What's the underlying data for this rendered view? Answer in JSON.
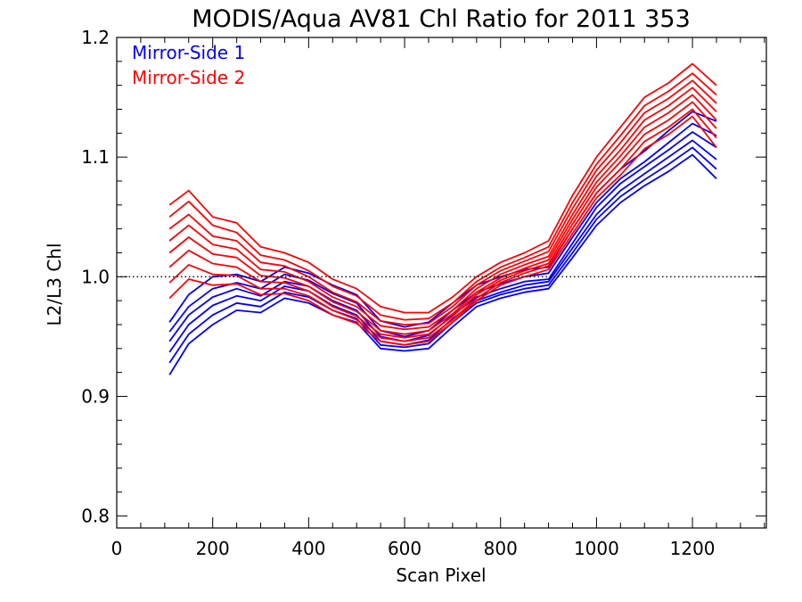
{
  "chart_data": {
    "type": "line",
    "title": "MODIS/Aqua AV81 Chl Ratio for 2011 353",
    "xlabel": "Scan Pixel",
    "ylabel": "L2/L3 Chl",
    "xlim": [
      0,
      1354
    ],
    "ylim": [
      0.79,
      1.2
    ],
    "xticks": [
      0,
      200,
      400,
      600,
      800,
      1000,
      1200
    ],
    "yticks": [
      0.8,
      0.9,
      1.0,
      1.1,
      1.2
    ],
    "xtick_labels": [
      "0",
      "200",
      "400",
      "600",
      "800",
      "1000",
      "1200"
    ],
    "ytick_labels": [
      "0.8",
      "0.9",
      "1.0",
      "1.1",
      "1.2"
    ],
    "reference_line": {
      "y": 1.0,
      "style": "dotted"
    },
    "legend_position": "top-left",
    "x": [
      110,
      150,
      200,
      250,
      300,
      350,
      400,
      450,
      500,
      550,
      600,
      650,
      700,
      750,
      800,
      850,
      900,
      950,
      1000,
      1050,
      1100,
      1150,
      1200,
      1250
    ],
    "series": [
      {
        "name": "Mirror-Side 1",
        "color": "#0000ff",
        "values": [
          0.962,
          0.985,
          1.0,
          1.002,
          0.996,
          1.008,
          1.003,
          0.993,
          0.985,
          0.963,
          0.958,
          0.962,
          0.978,
          0.993,
          1.0,
          1.006,
          1.008,
          1.04,
          1.07,
          1.09,
          1.105,
          1.122,
          1.138,
          1.13
        ]
      },
      {
        "name": "",
        "color": "#0000ff",
        "values": [
          0.954,
          0.975,
          0.99,
          0.995,
          0.99,
          1.002,
          0.997,
          0.986,
          0.978,
          0.955,
          0.95,
          0.955,
          0.972,
          0.987,
          0.994,
          1.0,
          1.003,
          1.033,
          1.062,
          1.082,
          1.096,
          1.112,
          1.128,
          1.118
        ]
      },
      {
        "name": "",
        "color": "#0000ff",
        "values": [
          0.946,
          0.968,
          0.983,
          0.99,
          0.984,
          0.996,
          0.992,
          0.98,
          0.972,
          0.95,
          0.946,
          0.951,
          0.968,
          0.983,
          0.99,
          0.996,
          0.998,
          1.028,
          1.058,
          1.078,
          1.092,
          1.106,
          1.121,
          1.108
        ]
      },
      {
        "name": "",
        "color": "#0000ff",
        "values": [
          0.937,
          0.96,
          0.976,
          0.984,
          0.98,
          0.992,
          0.988,
          0.976,
          0.968,
          0.946,
          0.943,
          0.947,
          0.965,
          0.98,
          0.987,
          0.993,
          0.996,
          1.024,
          1.052,
          1.072,
          1.086,
          1.1,
          1.114,
          1.098
        ]
      },
      {
        "name": "",
        "color": "#0000ff",
        "values": [
          0.928,
          0.952,
          0.968,
          0.978,
          0.975,
          0.987,
          0.983,
          0.972,
          0.965,
          0.943,
          0.941,
          0.944,
          0.962,
          0.978,
          0.985,
          0.99,
          0.993,
          1.02,
          1.048,
          1.067,
          1.081,
          1.094,
          1.108,
          1.09
        ]
      },
      {
        "name": "",
        "color": "#0000ff",
        "values": [
          0.918,
          0.944,
          0.96,
          0.972,
          0.97,
          0.982,
          0.978,
          0.968,
          0.962,
          0.94,
          0.938,
          0.94,
          0.958,
          0.975,
          0.982,
          0.987,
          0.99,
          1.016,
          1.043,
          1.062,
          1.076,
          1.088,
          1.102,
          1.082
        ]
      },
      {
        "name": "Mirror-Side 2",
        "color": "#ff0000",
        "values": [
          1.06,
          1.072,
          1.05,
          1.045,
          1.025,
          1.02,
          1.012,
          0.998,
          0.99,
          0.975,
          0.97,
          0.97,
          0.983,
          1.0,
          1.012,
          1.02,
          1.03,
          1.068,
          1.1,
          1.125,
          1.15,
          1.162,
          1.178,
          1.16
        ]
      },
      {
        "name": "",
        "color": "#ff0000",
        "values": [
          1.05,
          1.063,
          1.043,
          1.037,
          1.018,
          1.014,
          1.005,
          0.992,
          0.984,
          0.968,
          0.964,
          0.965,
          0.978,
          0.996,
          1.008,
          1.016,
          1.025,
          1.062,
          1.094,
          1.118,
          1.143,
          1.155,
          1.17,
          1.152
        ]
      },
      {
        "name": "",
        "color": "#ff0000",
        "values": [
          1.04,
          1.052,
          1.034,
          1.03,
          1.012,
          1.009,
          1.0,
          0.987,
          0.979,
          0.963,
          0.96,
          0.961,
          0.975,
          0.993,
          1.005,
          1.013,
          1.021,
          1.057,
          1.089,
          1.112,
          1.137,
          1.149,
          1.164,
          1.145
        ]
      },
      {
        "name": "",
        "color": "#ff0000",
        "values": [
          1.03,
          1.043,
          1.027,
          1.023,
          1.006,
          1.004,
          0.996,
          0.983,
          0.975,
          0.959,
          0.956,
          0.958,
          0.972,
          0.99,
          1.002,
          1.01,
          1.017,
          1.052,
          1.084,
          1.106,
          1.131,
          1.143,
          1.158,
          1.138
        ]
      },
      {
        "name": "",
        "color": "#ff0000",
        "values": [
          1.02,
          1.033,
          1.019,
          1.016,
          1.001,
          0.999,
          0.992,
          0.979,
          0.971,
          0.955,
          0.952,
          0.955,
          0.969,
          0.987,
          0.999,
          1.007,
          1.014,
          1.048,
          1.079,
          1.101,
          1.125,
          1.137,
          1.152,
          1.131
        ]
      },
      {
        "name": "",
        "color": "#ff0000",
        "values": [
          1.008,
          1.022,
          1.011,
          1.008,
          0.996,
          0.995,
          0.988,
          0.975,
          0.967,
          0.952,
          0.949,
          0.952,
          0.967,
          0.985,
          0.997,
          1.005,
          1.011,
          1.044,
          1.075,
          1.096,
          1.119,
          1.131,
          1.146,
          1.124
        ]
      },
      {
        "name": "",
        "color": "#ff0000",
        "values": [
          0.995,
          1.01,
          1.002,
          1.001,
          0.99,
          0.99,
          0.984,
          0.972,
          0.964,
          0.949,
          0.946,
          0.949,
          0.964,
          0.982,
          0.995,
          1.003,
          1.009,
          1.04,
          1.07,
          1.09,
          1.113,
          1.125,
          1.14,
          1.116
        ]
      },
      {
        "name": "",
        "color": "#ff0000",
        "values": [
          0.982,
          0.998,
          0.993,
          0.994,
          0.985,
          0.986,
          0.98,
          0.968,
          0.961,
          0.946,
          0.943,
          0.946,
          0.962,
          0.98,
          0.993,
          1.0,
          1.006,
          1.036,
          1.066,
          1.085,
          1.107,
          1.119,
          1.134,
          1.108
        ]
      }
    ]
  }
}
